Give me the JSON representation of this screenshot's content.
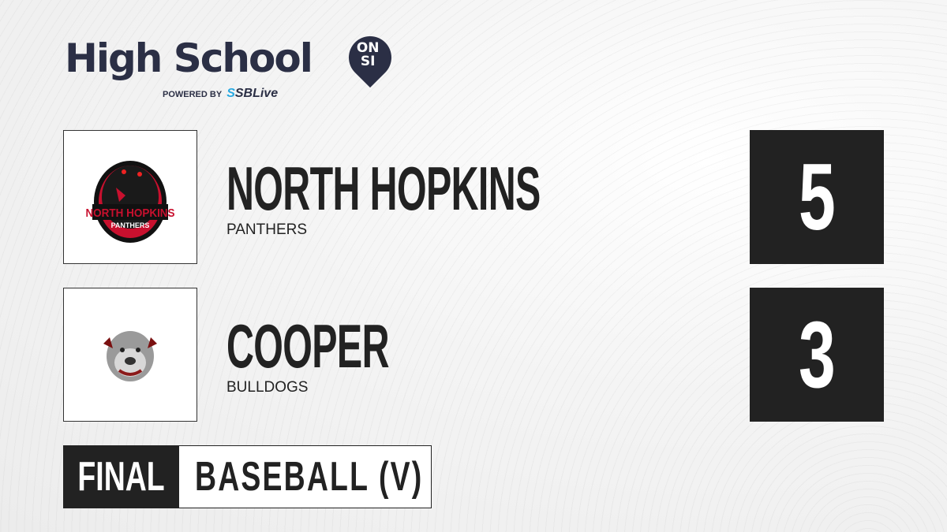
{
  "brand": {
    "title": "High School",
    "badge_top": "ON",
    "badge_bottom": "SI",
    "powered_by": "POWERED BY",
    "partner_prefix": "S",
    "partner": "SBLive"
  },
  "teams": [
    {
      "name": "NORTH HOPKINS",
      "mascot": "PANTHERS",
      "score": "5",
      "logo_text": "NORTH HOPKINS",
      "logo_sub": "PANTHERS"
    },
    {
      "name": "COOPER",
      "mascot": "BULLDOGS",
      "score": "3"
    }
  ],
  "status": {
    "state": "FINAL",
    "sport": "BASEBALL (V)"
  },
  "colors": {
    "brand": "#2b2f45",
    "accent": "#29a9e1",
    "dark": "#222222",
    "panther_red": "#c8102e"
  }
}
